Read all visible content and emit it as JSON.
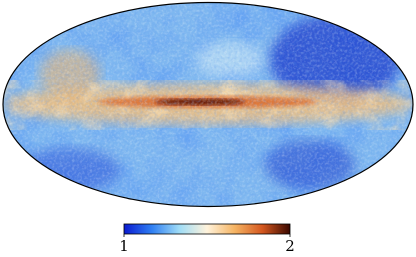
{
  "chart_data": {
    "type": "map",
    "projection": "mollweide",
    "colorbar": {
      "clim": [
        1,
        2
      ],
      "ticks": [
        1,
        2
      ],
      "colormap": [
        "#0a1ad0",
        "#2f7ef2",
        "#9fdcf6",
        "#fff3dc",
        "#f5b463",
        "#d4571f",
        "#3a0800"
      ]
    }
  }
}
